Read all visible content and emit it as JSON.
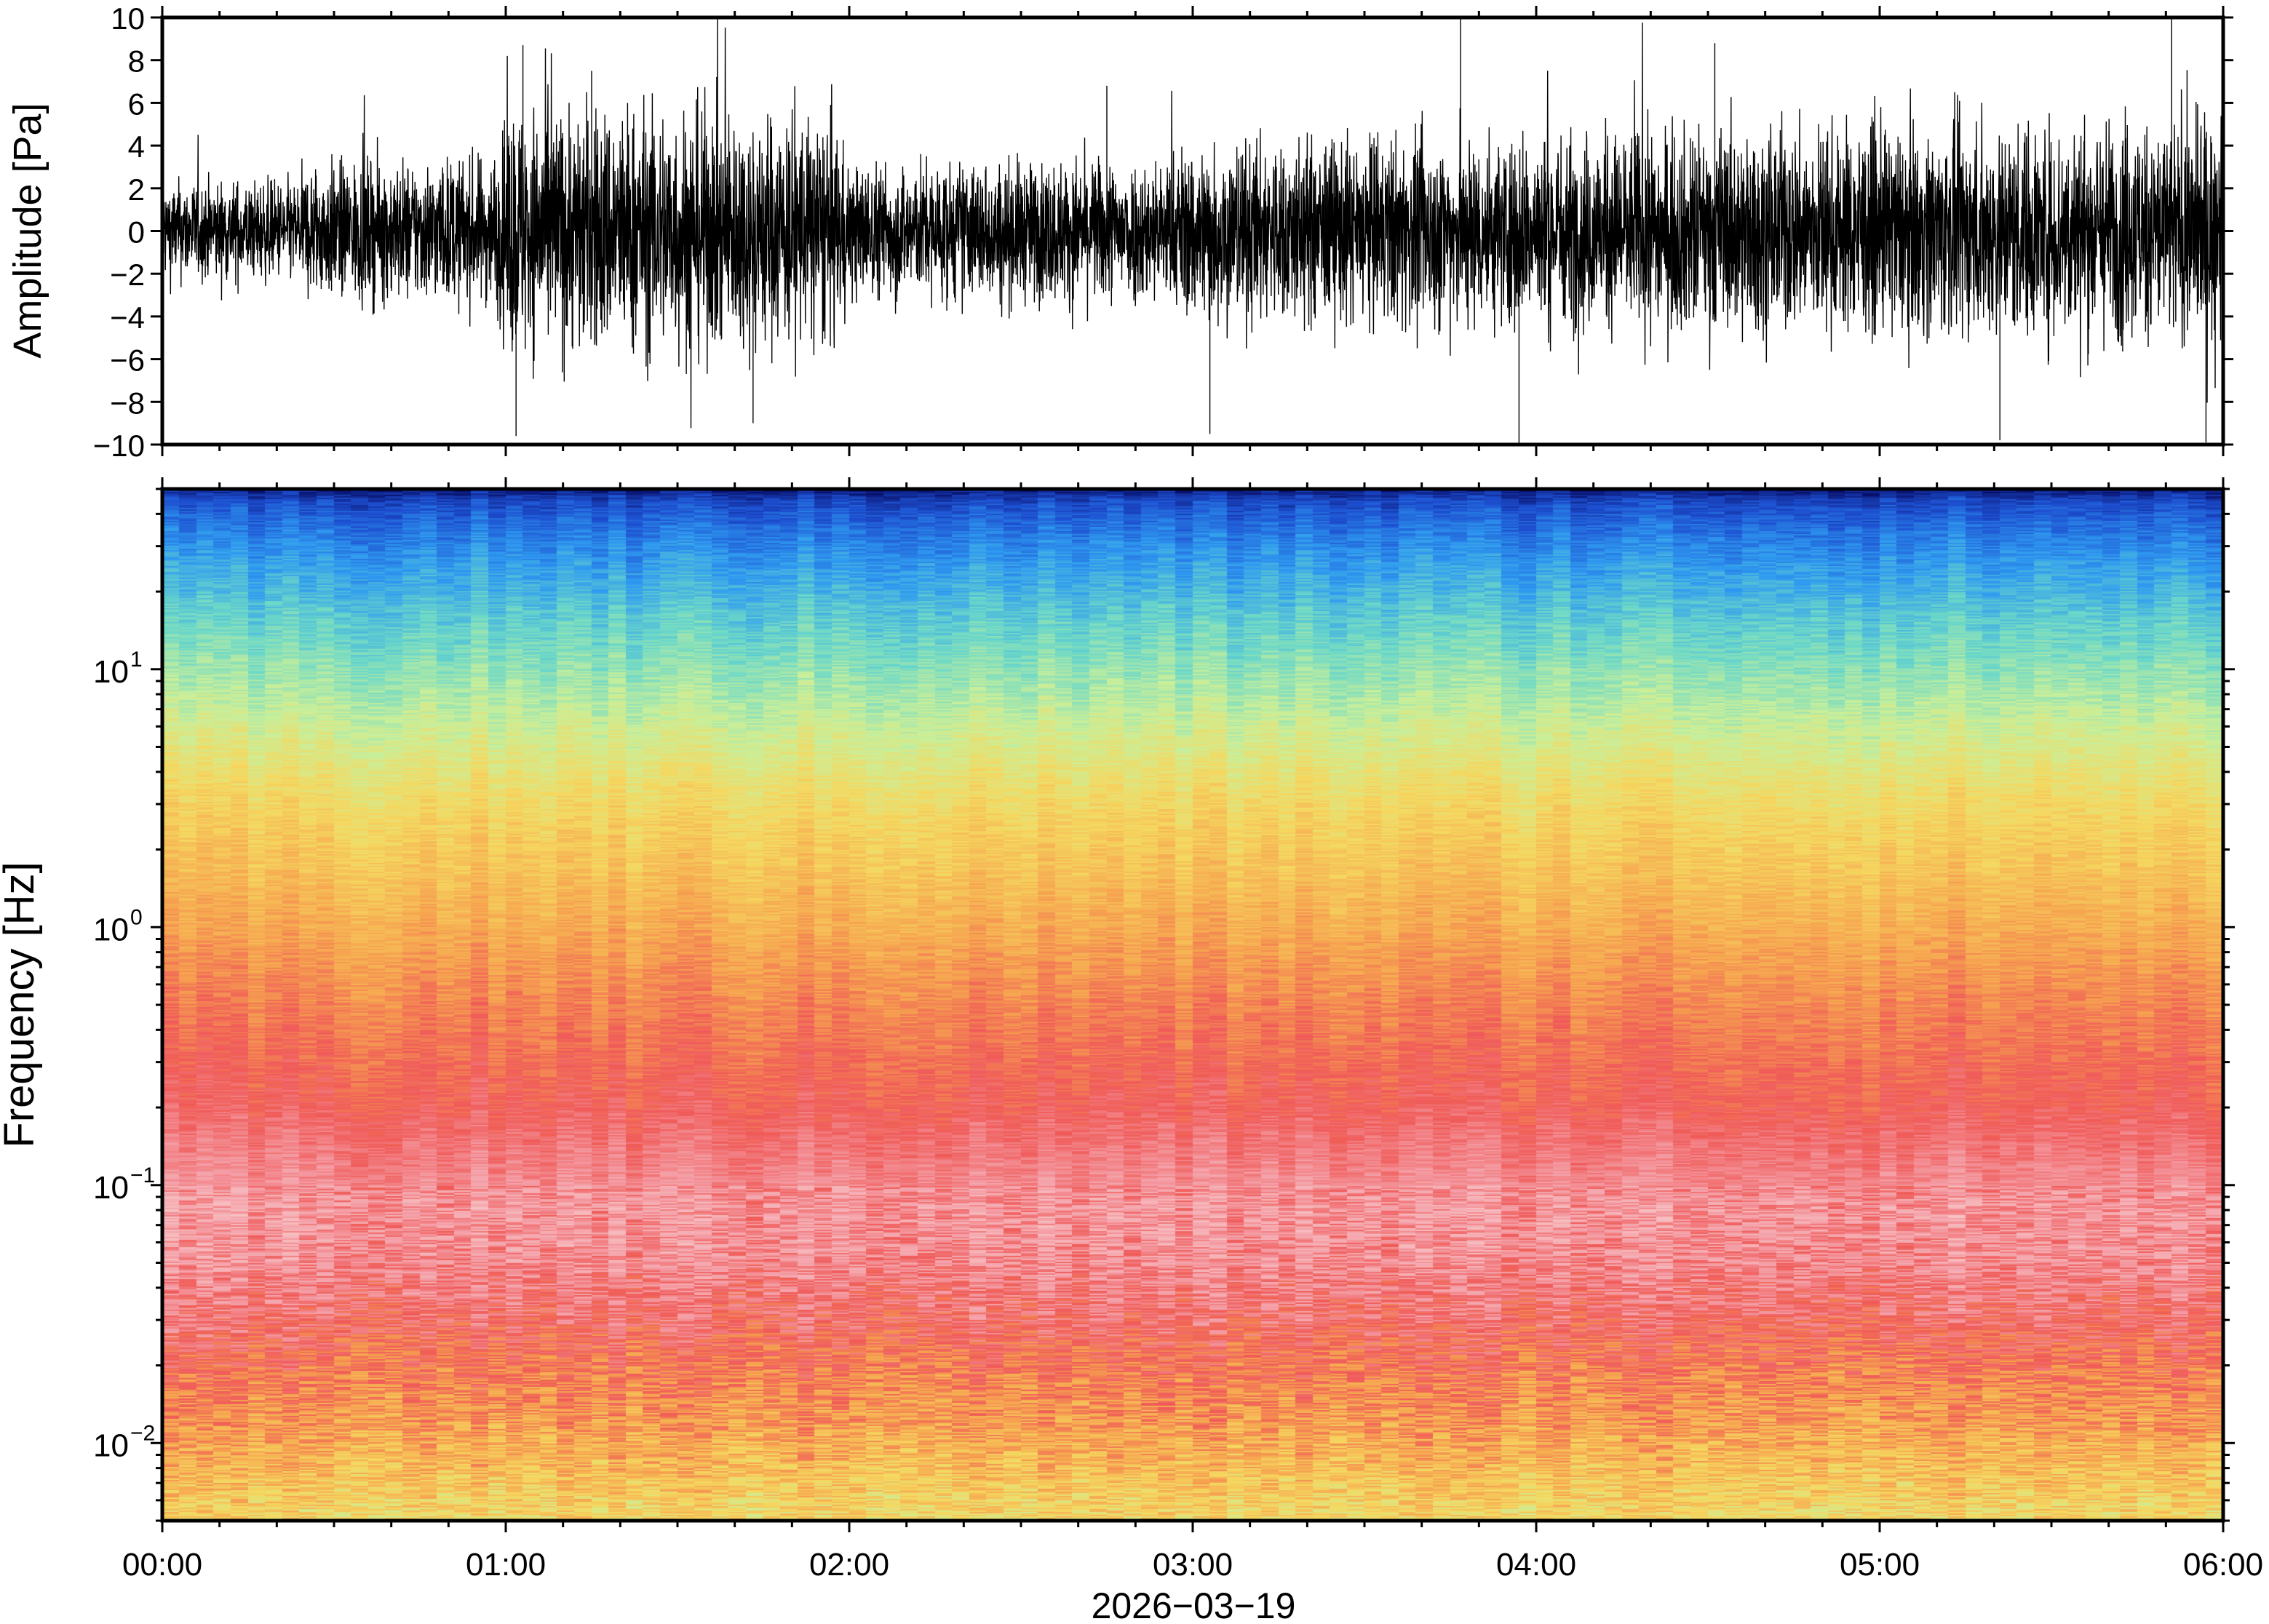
{
  "chart_data": [
    {
      "type": "line",
      "panel": "waveform",
      "xlabel": "",
      "ylabel": "Amplitude [Pa]",
      "x_unit": "hours since 00:00",
      "xlim": [
        0,
        6
      ],
      "ylim": [
        -10,
        10
      ],
      "yticks": [
        10,
        8,
        6,
        4,
        2,
        0,
        -2,
        -4,
        -6,
        -8,
        -10
      ],
      "ytick_labels": [
        "10",
        "8",
        "6",
        "4",
        "2",
        "0",
        "−2",
        "−4",
        "−6",
        "−8",
        "−10"
      ],
      "envelope": {
        "t": [
          0.0,
          0.4,
          0.42,
          0.95,
          0.99,
          1.0,
          1.05,
          1.5,
          1.95,
          2.0,
          2.05,
          2.9,
          2.95,
          3.0,
          3.05,
          3.8,
          4.5,
          5.0,
          5.5,
          6.0
        ],
        "typical_peak": [
          2.2,
          2.2,
          3.0,
          3.2,
          4.0,
          5.5,
          5.5,
          5.5,
          5.0,
          3.0,
          3.0,
          3.2,
          3.5,
          4.0,
          4.0,
          4.2,
          4.5,
          4.5,
          4.8,
          5.0
        ]
      },
      "peaks": [
        {
          "t": 1.05,
          "value": 8.7
        },
        {
          "t": 1.03,
          "value": -9.6
        },
        {
          "t": 1.25,
          "value": 7.5
        },
        {
          "t": 1.72,
          "value": -9.0
        },
        {
          "t": 2.75,
          "value": 6.8
        },
        {
          "t": 3.05,
          "value": -9.5
        },
        {
          "t": 3.78,
          "value": 10.0
        },
        {
          "t": 3.95,
          "value": -10.0
        },
        {
          "t": 4.52,
          "value": 8.8
        },
        {
          "t": 5.35,
          "value": -9.8
        },
        {
          "t": 5.85,
          "value": 10.0
        },
        {
          "t": 5.95,
          "value": -9.9
        }
      ],
      "color": "#000000",
      "grid": false
    },
    {
      "type": "heatmap",
      "panel": "spectrogram",
      "xlabel": "2026−03−19",
      "ylabel": "Frequency [Hz]",
      "x_unit": "hours since 00:00",
      "xlim": [
        0,
        6
      ],
      "ylim": [
        0.005,
        50
      ],
      "yscale": "log",
      "yticks": [
        0.01,
        0.1,
        1,
        10
      ],
      "ytick_labels": [
        {
          "base": "10",
          "exp": "−2"
        },
        {
          "base": "10",
          "exp": "−1"
        },
        {
          "base": "10",
          "exp": "0"
        },
        {
          "base": "10",
          "exp": "1"
        }
      ],
      "xticks": [
        0,
        1,
        2,
        3,
        4,
        5,
        6
      ],
      "xtick_labels": [
        "00:00",
        "01:00",
        "02:00",
        "03:00",
        "04:00",
        "05:00",
        "06:00"
      ],
      "colormap": "rainbow (low → high: blue, cyan, green, yellow, orange, red, pink)",
      "colormap_stops": [
        "#08106a",
        "#1d4fd0",
        "#2f9af0",
        "#6cd8c8",
        "#c9ef9a",
        "#f5d860",
        "#f6a650",
        "#f05a58",
        "#f4a0a8",
        "#f8c8c8"
      ],
      "level_profile": {
        "freq_hz": [
          0.005,
          0.008,
          0.012,
          0.02,
          0.03,
          0.05,
          0.08,
          0.12,
          0.2,
          0.35,
          0.6,
          1.0,
          1.7,
          3.0,
          5.0,
          8.0,
          12.0,
          20.0,
          30.0,
          45.0,
          50.0
        ],
        "level": [
          0.55,
          0.62,
          0.68,
          0.74,
          0.8,
          0.86,
          0.88,
          0.84,
          0.78,
          0.74,
          0.7,
          0.65,
          0.6,
          0.55,
          0.48,
          0.41,
          0.35,
          0.27,
          0.2,
          0.1,
          0.02
        ]
      },
      "grid": false
    }
  ]
}
